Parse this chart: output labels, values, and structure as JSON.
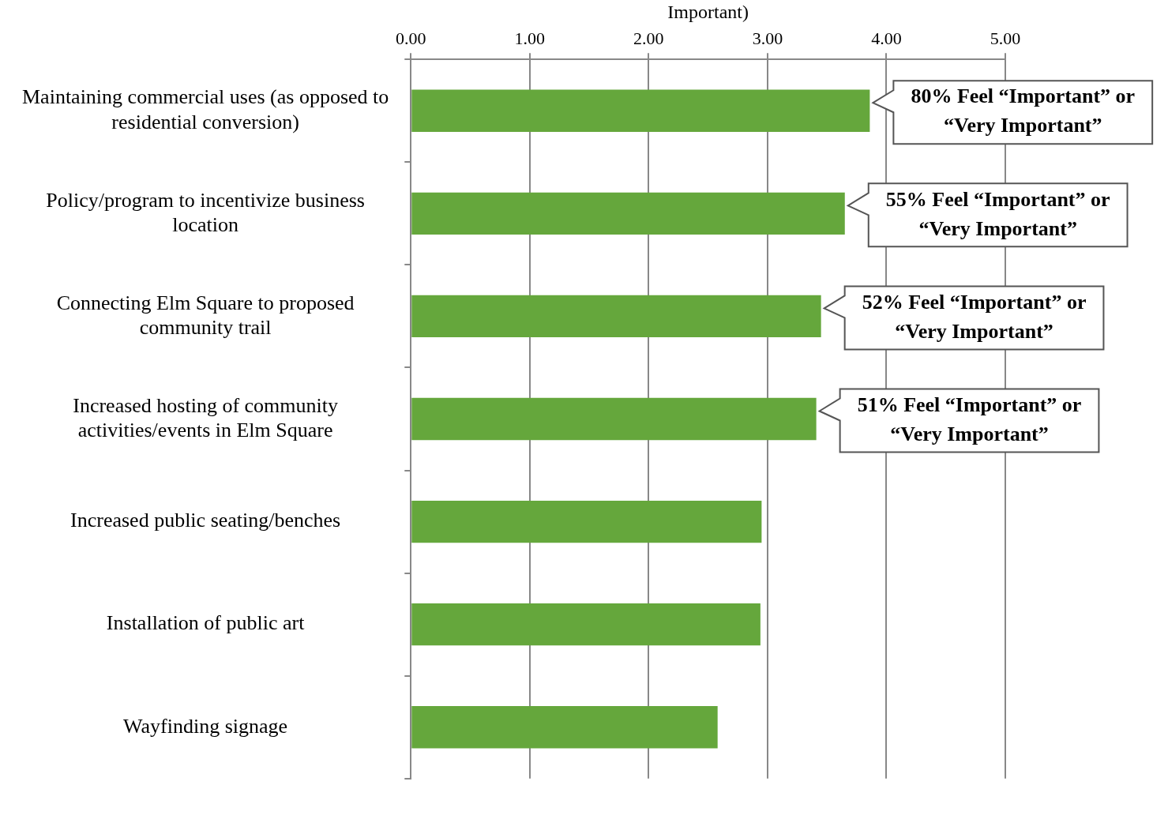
{
  "chart_data": {
    "type": "bar",
    "orientation": "horizontal",
    "xlabel": "Important)",
    "categories": [
      "Maintaining commercial uses (as opposed to residential conversion)",
      "Policy/program to incentivize business location",
      "Connecting Elm Square to proposed community trail",
      "Increased hosting of community activities/events in Elm Square",
      "Increased public seating/benches",
      "Installation of public art",
      "Wayfinding signage"
    ],
    "values": [
      3.86,
      3.65,
      3.45,
      3.41,
      2.95,
      2.94,
      2.58
    ],
    "color": "#65a73c",
    "xlim": [
      0,
      5
    ],
    "xticks": [
      {
        "value": 0,
        "label": "0.00"
      },
      {
        "value": 1,
        "label": "1.00"
      },
      {
        "value": 2,
        "label": "2.00"
      },
      {
        "value": 3,
        "label": "3.00"
      },
      {
        "value": 4,
        "label": "4.00"
      },
      {
        "value": 5,
        "label": "5.00"
      }
    ],
    "grid": "x",
    "legend": false,
    "annotations": [
      {
        "text": "80% Feel “Important” or “Very Important”",
        "x": 3.86,
        "y": "Maintaining commercial uses (as opposed to residential conversion)"
      },
      {
        "text": "55% Feel “Important” or “Very Important”",
        "x": 3.65,
        "y": "Policy/program to incentivize business location"
      },
      {
        "text": "52% Feel “Important” or “Very Important”",
        "x": 3.45,
        "y": "Connecting Elm Square to proposed community trail"
      },
      {
        "text": "51% Feel “Important” or “Very Important”",
        "x": 3.41,
        "y": "Increased hosting of community activities/events in Elm Square"
      }
    ]
  }
}
